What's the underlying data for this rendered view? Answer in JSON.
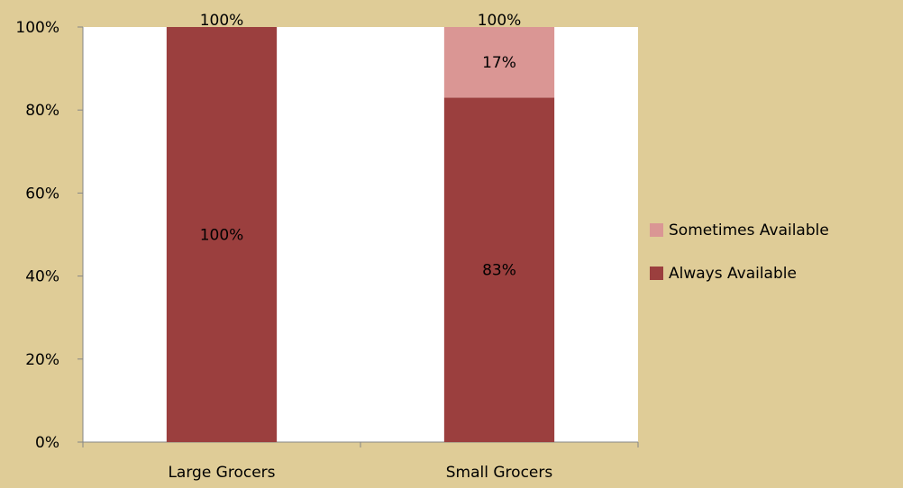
{
  "chart_data": {
    "type": "bar",
    "stacked": true,
    "categories": [
      "Large Grocers",
      "Small Grocers"
    ],
    "series": [
      {
        "name": "Always Available",
        "values": [
          100,
          83
        ],
        "color": "#9b3f3e",
        "labels": [
          "100%",
          "83%"
        ]
      },
      {
        "name": "Sometimes Available",
        "values": [
          0,
          17
        ],
        "color": "#da9694",
        "labels": [
          "",
          "17%"
        ]
      }
    ],
    "totals": [
      "100%",
      "100%"
    ],
    "yticks": [
      "0%",
      "20%",
      "40%",
      "60%",
      "80%",
      "100%"
    ],
    "ylim": [
      0,
      100
    ],
    "grid": false,
    "legend_position": "right",
    "background_color": "#dfcc97",
    "plot_background_color": "#ffffff"
  }
}
